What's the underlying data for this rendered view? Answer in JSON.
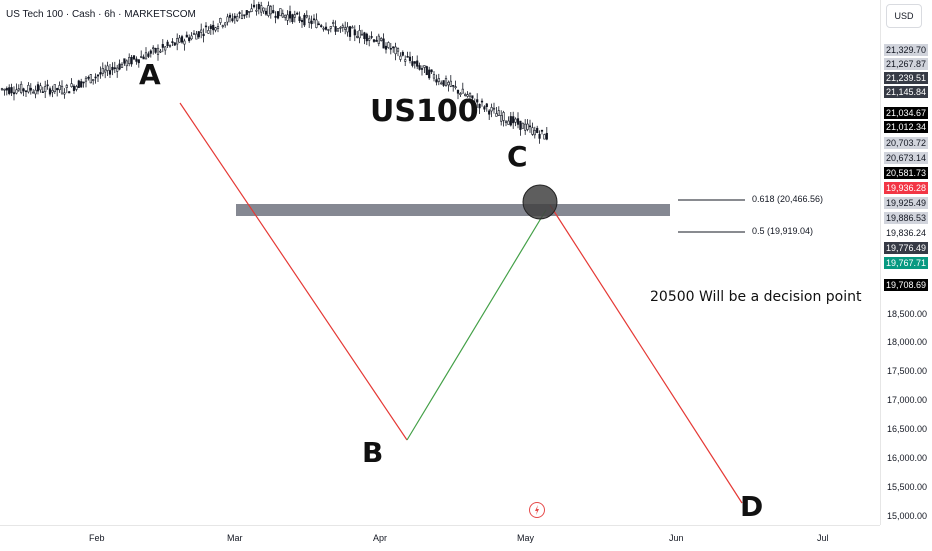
{
  "header": {
    "symbol_title": "US Tech 100 · Cash · 6h · MARKETSCOM",
    "currency": "USD"
  },
  "annotations": {
    "title": "US100",
    "wave_a": "A",
    "wave_b": "B",
    "wave_c": "C",
    "wave_d": "D",
    "note": "20500 Will be a decision point",
    "fib_0618": "0.618 (20,466.56)",
    "fib_05": "0.5 (19,919.04)"
  },
  "price_axis": {
    "ticks": [
      "18,500.00",
      "18,000.00",
      "17,500.00",
      "17,000.00",
      "16,500.00",
      "16,000.00",
      "15,500.00",
      "15,000.00"
    ],
    "tags": [
      {
        "text": "21,329.70",
        "bg": "#d1d4dc",
        "color": "#131722"
      },
      {
        "text": "21,267.87",
        "bg": "#d1d4dc",
        "color": "#131722"
      },
      {
        "text": "21,239.51",
        "bg": "#363a45",
        "color": "#ffffff"
      },
      {
        "text": "21,145.84",
        "bg": "#363a45",
        "color": "#ffffff"
      },
      {
        "text": "21,034.67",
        "bg": "#000000",
        "color": "#ffffff"
      },
      {
        "text": "21,012.34",
        "bg": "#000000",
        "color": "#ffffff"
      },
      {
        "text": "20,703.72",
        "bg": "#d1d4dc",
        "color": "#131722"
      },
      {
        "text": "20,673.14",
        "bg": "#d1d4dc",
        "color": "#131722"
      },
      {
        "text": "20,581.73",
        "bg": "#000000",
        "color": "#ffffff"
      },
      {
        "text": "19,936.28",
        "bg": "#f23645",
        "color": "#ffffff"
      },
      {
        "text": "19,925.49",
        "bg": "#d1d4dc",
        "color": "#131722"
      },
      {
        "text": "19,886.53",
        "bg": "#d1d4dc",
        "color": "#131722"
      },
      {
        "text": "19,836.24",
        "bg": "#ffffff",
        "color": "#131722"
      },
      {
        "text": "19,776.49",
        "bg": "#363a45",
        "color": "#ffffff"
      },
      {
        "text": "19,767.71",
        "bg": "#089981",
        "color": "#ffffff"
      },
      {
        "text": "19,708.69",
        "bg": "#000000",
        "color": "#ffffff"
      }
    ]
  },
  "time_axis": {
    "labels": [
      "Feb",
      "Mar",
      "Apr",
      "May",
      "Jun",
      "Jul"
    ]
  },
  "colors": {
    "up": "#089981",
    "down": "#f23645",
    "candle": "#131722",
    "red_line": "#e53935",
    "green_line": "#43a047",
    "zone": "#787b86"
  },
  "chart_data": {
    "type": "candlestick",
    "symbol": "US Tech 100 · Cash",
    "interval": "6h",
    "x_labels": [
      "Feb",
      "Mar",
      "Apr",
      "May",
      "Jun",
      "Jul"
    ],
    "ylim": [
      15000,
      21400
    ],
    "y_ticks": [
      18500,
      18000,
      17500,
      17000,
      16500,
      16000,
      15500,
      15000
    ],
    "price_path": [
      [
        20800,
        7
      ],
      [
        21150,
        6
      ],
      [
        21400,
        5
      ],
      [
        21700,
        5
      ],
      [
        21900,
        4
      ],
      [
        21700,
        6
      ],
      [
        21500,
        6
      ],
      [
        21000,
        6
      ],
      [
        20450,
        7
      ],
      [
        20100,
        6
      ],
      [
        19900,
        6
      ],
      [
        19300,
        7
      ],
      [
        19500,
        8
      ],
      [
        19950,
        8
      ],
      [
        20500,
        6
      ],
      [
        19800,
        6
      ],
      [
        19200,
        6
      ],
      [
        17900,
        5
      ],
      [
        16450,
        7
      ],
      [
        17650,
        6
      ],
      [
        17300,
        7
      ],
      [
        18150,
        6
      ],
      [
        19150,
        8
      ],
      [
        19650,
        6
      ],
      [
        19900,
        4
      ],
      [
        20000,
        3
      ]
    ],
    "projections": [
      {
        "name": "A-B",
        "from": 21750,
        "to": 16350
      },
      {
        "name": "B-C",
        "from": 16350,
        "to": 20450
      },
      {
        "name": "C-D",
        "from": 20450,
        "to": 15300
      }
    ],
    "levels": [
      {
        "label": "0.618 (20,466.56)",
        "value": 20466.56
      },
      {
        "label": "0.5 (19,919.04)",
        "value": 19919.04
      }
    ]
  }
}
